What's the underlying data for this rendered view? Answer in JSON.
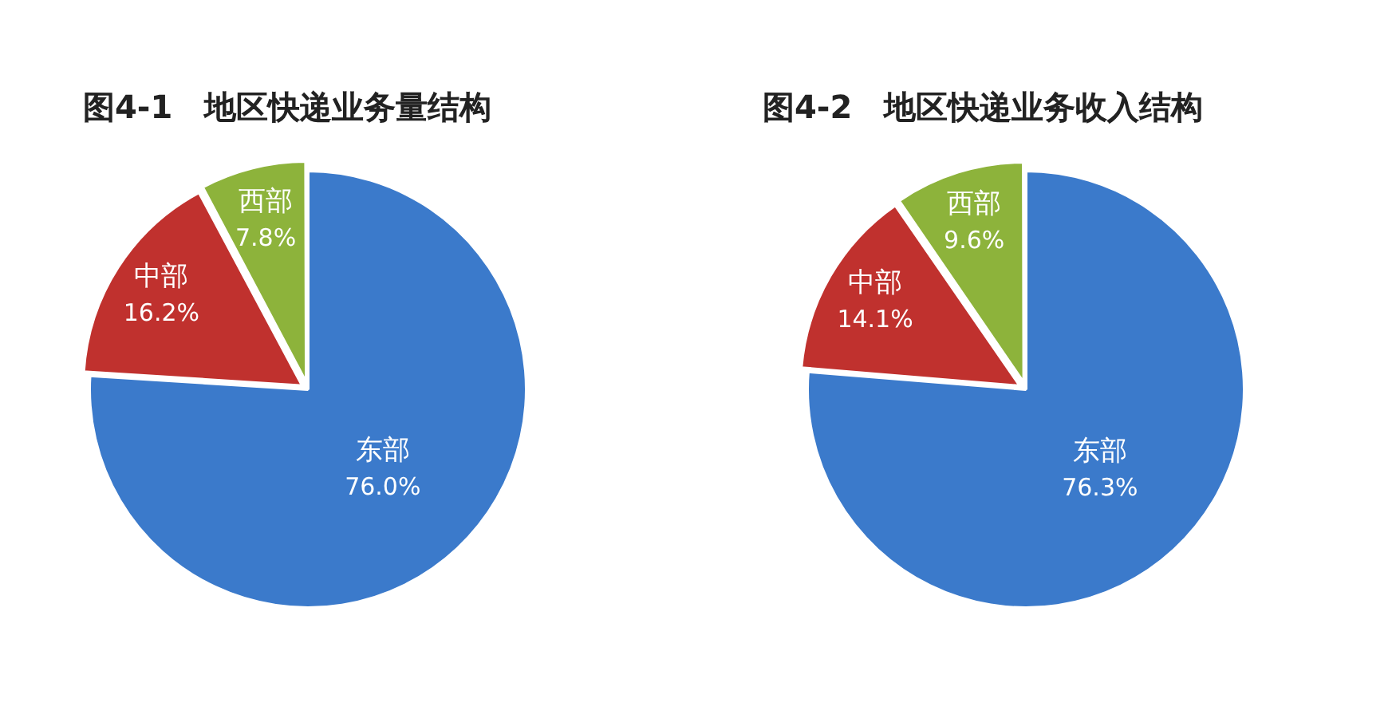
{
  "chart_data": [
    {
      "type": "pie",
      "title": "图4-1　地区快递业务量结构",
      "categories": [
        "东部",
        "中部",
        "西部"
      ],
      "values": [
        76.0,
        16.2,
        7.8
      ],
      "value_labels": [
        "76.0%",
        "16.2%",
        "7.8%"
      ],
      "colors": [
        "#3b7acb",
        "#c0312e",
        "#8db33b"
      ],
      "legend": false
    },
    {
      "type": "pie",
      "title": "图4-2　地区快递业务收入结构",
      "categories": [
        "东部",
        "中部",
        "西部"
      ],
      "values": [
        76.3,
        14.1,
        9.6
      ],
      "value_labels": [
        "76.3%",
        "14.1%",
        "9.6%"
      ],
      "colors": [
        "#3b7acb",
        "#c0312e",
        "#8db33b"
      ],
      "legend": false
    }
  ]
}
